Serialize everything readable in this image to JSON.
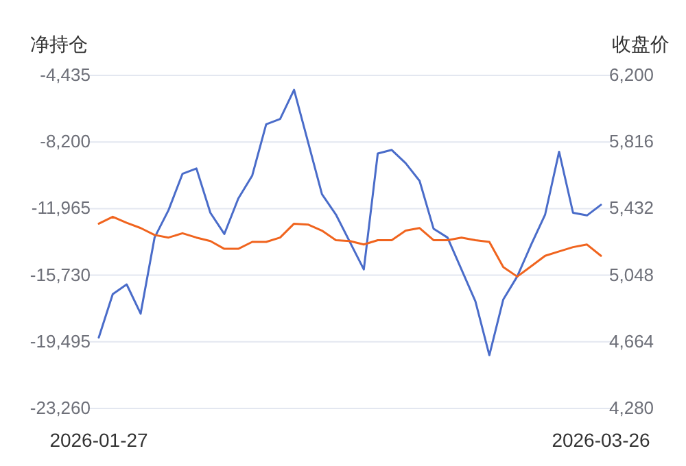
{
  "chart_data": {
    "type": "line",
    "ylabel": "净持仓",
    "y2label": "收盘价",
    "categories": [
      "2026-01-27",
      null,
      null,
      null,
      null,
      null,
      null,
      null,
      null,
      null,
      null,
      null,
      null,
      null,
      null,
      null,
      null,
      null,
      null,
      null,
      null,
      null,
      null,
      null,
      null,
      null,
      null,
      null,
      null,
      null,
      null,
      null,
      null,
      null,
      null,
      null,
      "2026-03-26"
    ],
    "series": [
      {
        "color": "#4a6cc9",
        "values": [
          -19250,
          -16800,
          -16250,
          -17900,
          -13600,
          -12050,
          -10000,
          -9700,
          -12200,
          -13400,
          -11400,
          -10100,
          -7200,
          -6900,
          -5250,
          -8200,
          -11150,
          -12300,
          -13850,
          -15400,
          -8850,
          -8650,
          -9400,
          -10400,
          -13100,
          -13600,
          -15400,
          -17200,
          -20250,
          -17100,
          -15800,
          -14000,
          -12300,
          -8750,
          -12200,
          -12350,
          -11750
        ]
      },
      {
        "color": "#f0641e",
        "axis": "y2",
        "values": [
          5345,
          5385,
          5350,
          5320,
          5280,
          5265,
          5290,
          5265,
          5245,
          5200,
          5200,
          5240,
          5240,
          5265,
          5345,
          5340,
          5305,
          5250,
          5245,
          5225,
          5250,
          5250,
          5305,
          5320,
          5250,
          5250,
          5265,
          5250,
          5240,
          5095,
          5040,
          5100,
          5160,
          5185,
          5210,
          5225,
          5160
        ]
      }
    ],
    "ylim": [
      -23260,
      -4435
    ],
    "yticks": [
      {
        "value": -23260,
        "label": "-23,260"
      },
      {
        "value": -19495,
        "label": "-19,495"
      },
      {
        "value": -15730,
        "label": "-15,730"
      },
      {
        "value": -11965,
        "label": "-11,965"
      },
      {
        "value": -8200,
        "label": "-8,200"
      },
      {
        "value": -4435,
        "label": "-4,435"
      }
    ],
    "y2lim": [
      4280,
      6200
    ],
    "y2ticks": [
      {
        "value": 4280,
        "label": "4,280"
      },
      {
        "value": 4664,
        "label": "4,664"
      },
      {
        "value": 5048,
        "label": "5,048"
      },
      {
        "value": 5432,
        "label": "5,432"
      },
      {
        "value": 5816,
        "label": "5,816"
      },
      {
        "value": 6200,
        "label": "6,200"
      }
    ],
    "grid": "y",
    "marker": "none",
    "line_style": "solid"
  }
}
